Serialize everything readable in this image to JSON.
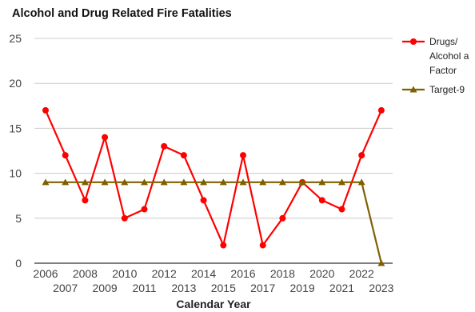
{
  "chart_data": {
    "type": "line",
    "title": "Alcohol and Drug Related Fire Fatalities",
    "xlabel": "Calendar Year",
    "ylabel": "",
    "ylim": [
      0,
      25
    ],
    "yticks": [
      0,
      5,
      10,
      15,
      20,
      25
    ],
    "grid": true,
    "legend_position": "right",
    "x": [
      2006,
      2007,
      2008,
      2009,
      2010,
      2011,
      2012,
      2013,
      2014,
      2015,
      2016,
      2017,
      2018,
      2019,
      2020,
      2021,
      2022,
      2023
    ],
    "series": [
      {
        "name": "Drugs/ Alcohol a Factor",
        "legend_lines": [
          "Drugs/",
          "Alcohol a",
          "Factor"
        ],
        "color": "#ff0000",
        "marker": "circle",
        "values": [
          17,
          12,
          7,
          14,
          5,
          6,
          13,
          12,
          7,
          2,
          12,
          2,
          5,
          9,
          7,
          6,
          12,
          17
        ]
      },
      {
        "name": "Target-9",
        "legend_lines": [
          "Target-9"
        ],
        "color": "#7f6000",
        "marker": "triangle",
        "values": [
          9,
          9,
          9,
          9,
          9,
          9,
          9,
          9,
          9,
          9,
          9,
          9,
          9,
          9,
          9,
          9,
          9,
          0
        ]
      }
    ]
  }
}
